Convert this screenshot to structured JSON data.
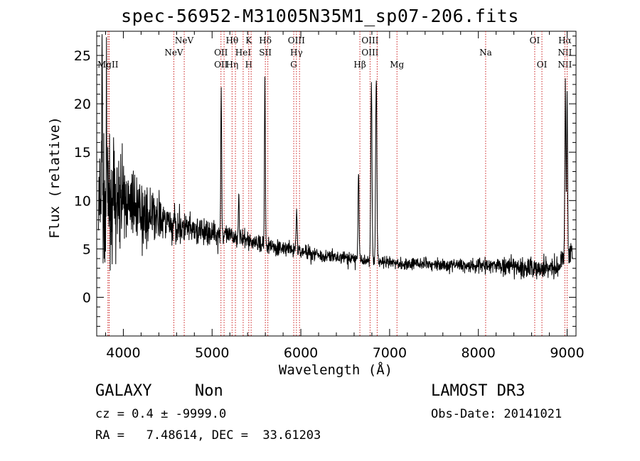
{
  "title": "spec-56952-M31005N35M1_sp07-206.fits",
  "info": {
    "class": "GALAXY",
    "subclass": "Non",
    "cz": "cz = 0.4 ± -9999.0",
    "radec": "RA =   7.48614, DEC =  33.61203",
    "survey": "LAMOST DR3",
    "obsdate": "Obs-Date: 20141021"
  },
  "chart_data": {
    "type": "line",
    "title": "spec-56952-M31005N35M1_sp07-206.fits",
    "xlabel": "Wavelength (Å)",
    "ylabel": "Flux (relative)",
    "xlim": [
      3700,
      9100
    ],
    "ylim": [
      -4,
      27.5
    ],
    "xticks": [
      4000,
      5000,
      6000,
      7000,
      8000,
      9000
    ],
    "yticks": [
      0,
      5,
      10,
      15,
      20,
      25
    ],
    "colors": {
      "spectrum": "#000000",
      "lines": "#cc2222"
    },
    "lines": [
      {
        "wave": 3826,
        "labels": [
          {
            "row": 3,
            "text": "MgII"
          }
        ]
      },
      {
        "wave": 3840,
        "labels": []
      },
      {
        "wave": 4569,
        "labels": [
          {
            "row": 2,
            "text": "NeV"
          }
        ]
      },
      {
        "wave": 4686,
        "labels": [
          {
            "row": 1,
            "text": "NeV"
          }
        ]
      },
      {
        "wave": 5100,
        "labels": [
          {
            "row": 2,
            "text": "OII"
          },
          {
            "row": 3,
            "text": "OII"
          }
        ]
      },
      {
        "wave": 5135,
        "labels": []
      },
      {
        "wave": 5225,
        "labels": [
          {
            "row": 1,
            "text": "Hθ"
          },
          {
            "row": 3,
            "text": "Hη"
          }
        ]
      },
      {
        "wave": 5263,
        "labels": []
      },
      {
        "wave": 5350,
        "labels": [
          {
            "row": 2,
            "text": "HeI"
          }
        ]
      },
      {
        "wave": 5413,
        "labels": [
          {
            "row": 1,
            "text": "K"
          },
          {
            "row": 3,
            "text": "H"
          }
        ]
      },
      {
        "wave": 5440,
        "labels": []
      },
      {
        "wave": 5600,
        "labels": [
          {
            "row": 1,
            "text": "Hδ"
          },
          {
            "row": 2,
            "text": "SII"
          }
        ]
      },
      {
        "wave": 5628,
        "labels": []
      },
      {
        "wave": 5920,
        "labels": [
          {
            "row": 3,
            "text": "G"
          }
        ]
      },
      {
        "wave": 5950,
        "labels": [
          {
            "row": 1,
            "text": "OIII"
          },
          {
            "row": 2,
            "text": "Hγ"
          }
        ]
      },
      {
        "wave": 5985,
        "labels": []
      },
      {
        "wave": 6665,
        "labels": [
          {
            "row": 3,
            "text": "Hβ"
          }
        ]
      },
      {
        "wave": 6780,
        "labels": [
          {
            "row": 1,
            "text": "OIII"
          },
          {
            "row": 2,
            "text": "OIII"
          }
        ]
      },
      {
        "wave": 6860,
        "labels": []
      },
      {
        "wave": 7083,
        "labels": [
          {
            "row": 3,
            "text": "Mg"
          }
        ]
      },
      {
        "wave": 8082,
        "labels": [
          {
            "row": 2,
            "text": "Na"
          }
        ]
      },
      {
        "wave": 8635,
        "labels": [
          {
            "row": 1,
            "text": "OI"
          }
        ]
      },
      {
        "wave": 8716,
        "labels": [
          {
            "row": 3,
            "text": "OI"
          }
        ]
      },
      {
        "wave": 8975,
        "labels": [
          {
            "row": 1,
            "text": "Hα"
          },
          {
            "row": 2,
            "text": "NII"
          },
          {
            "row": 3,
            "text": "NII"
          }
        ]
      },
      {
        "wave": 9000,
        "labels": []
      }
    ],
    "spectrum": {
      "continuum": [
        [
          3720,
          9
        ],
        [
          3760,
          9
        ],
        [
          3800,
          9.5
        ],
        [
          3850,
          10
        ],
        [
          3950,
          10
        ],
        [
          4100,
          9.5
        ],
        [
          4300,
          8.3
        ],
        [
          4500,
          7.8
        ],
        [
          4700,
          7
        ],
        [
          4900,
          6.7
        ],
        [
          5100,
          6.5
        ],
        [
          5300,
          6.1
        ],
        [
          5500,
          5.6
        ],
        [
          5700,
          5.2
        ],
        [
          5900,
          4.9
        ],
        [
          6100,
          4.6
        ],
        [
          6300,
          4.2
        ],
        [
          6500,
          4.1
        ],
        [
          6600,
          4.0
        ],
        [
          6900,
          3.6
        ],
        [
          7100,
          3.5
        ],
        [
          7500,
          3.4
        ],
        [
          8000,
          3.3
        ],
        [
          8300,
          3.2
        ],
        [
          8500,
          3.0
        ],
        [
          8700,
          3.1
        ],
        [
          8900,
          3.2
        ],
        [
          9000,
          4.5
        ],
        [
          9060,
          5
        ]
      ],
      "noise": [
        [
          3720,
          6
        ],
        [
          3850,
          5
        ],
        [
          4000,
          3
        ],
        [
          4300,
          2.2
        ],
        [
          4700,
          1.4
        ],
        [
          5200,
          0.8
        ],
        [
          6000,
          0.6
        ],
        [
          7000,
          0.5
        ],
        [
          8000,
          0.6
        ],
        [
          8500,
          0.9
        ],
        [
          9000,
          1.0
        ],
        [
          9060,
          1.0
        ]
      ],
      "emission": [
        {
          "center": 3760,
          "peak": 26.5,
          "sigma": 4
        },
        {
          "center": 3810,
          "peak": 19,
          "sigma": 4
        },
        {
          "center": 5103,
          "peak": 21.5,
          "sigma": 5
        },
        {
          "center": 5300,
          "peak": 11,
          "sigma": 5
        },
        {
          "center": 5595,
          "peak": 22.5,
          "sigma": 5
        },
        {
          "center": 5953,
          "peak": 9,
          "sigma": 6
        },
        {
          "center": 6650,
          "peak": 13,
          "sigma": 6
        },
        {
          "center": 6795,
          "peak": 22.5,
          "sigma": 7
        },
        {
          "center": 6850,
          "peak": 22.5,
          "sigma": 7
        },
        {
          "center": 8980,
          "peak": 22,
          "sigma": 6
        },
        {
          "center": 9000,
          "peak": 21,
          "sigma": 5
        }
      ]
    }
  }
}
